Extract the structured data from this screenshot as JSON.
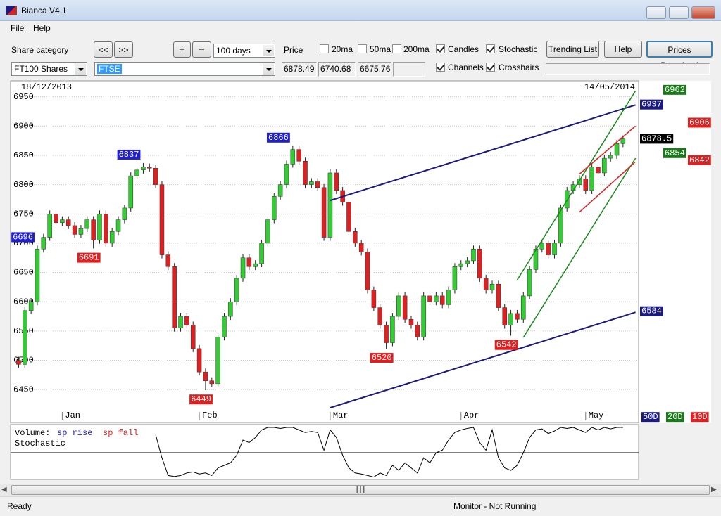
{
  "window": {
    "title": "Bianca V4.1"
  },
  "menu": [
    "File",
    "Help"
  ],
  "toolbar": {
    "share_category_label": "Share category",
    "nav_buttons": [
      "<<",
      ">>"
    ],
    "zoom_buttons": [
      "+",
      "−"
    ],
    "period": "100 days",
    "price_label": "Price",
    "options": [
      {
        "label": "20ma",
        "checked": false
      },
      {
        "label": "50ma",
        "checked": false
      },
      {
        "label": "200ma",
        "checked": false
      },
      {
        "label": "Candles",
        "checked": true
      },
      {
        "label": "Stochastic",
        "checked": true
      },
      {
        "label": "Channels",
        "checked": true
      },
      {
        "label": "Crosshairs",
        "checked": true
      }
    ],
    "buttons": [
      "Trending List",
      "Help",
      "Prices Download"
    ],
    "category": "FT100 Shares",
    "share": "FTSE",
    "prices": [
      6878.49,
      6740.68,
      6675.76
    ]
  },
  "chart_data": {
    "type": "candlestick",
    "start_date": "18/12/2013",
    "end_date": "14/05/2014",
    "rise_color": "#33cc33",
    "fall_color": "#e02020",
    "xlim": [
      -0.5,
      99.5
    ],
    "xticks": [
      {
        "value": 7,
        "label": "Jan"
      },
      {
        "value": 29,
        "label": "Feb"
      },
      {
        "value": 50,
        "label": "Mar"
      },
      {
        "value": 71,
        "label": "Apr"
      },
      {
        "value": 91,
        "label": "May"
      }
    ],
    "ylim": [
      6395,
      6976
    ],
    "yticks": [
      6450,
      6500,
      6550,
      6600,
      6650,
      6700,
      6750,
      6800,
      6850,
      6900,
      6950
    ],
    "grid": true,
    "open": [
      6500,
      6493,
      6585,
      6600,
      6690,
      6710,
      6750,
      6735,
      6740,
      6730,
      6715,
      6725,
      6740,
      6705,
      6750,
      6700,
      6720,
      6740,
      6760,
      6815,
      6825,
      6830,
      6828,
      6800,
      6680,
      6660,
      6555,
      6575,
      6560,
      6520,
      6480,
      6465,
      6460,
      6540,
      6575,
      6600,
      6640,
      6675,
      6660,
      6665,
      6700,
      6740,
      6780,
      6800,
      6835,
      6860,
      6840,
      6800,
      6805,
      6795,
      6710,
      6820,
      6790,
      6770,
      6720,
      6700,
      6685,
      6620,
      6590,
      6560,
      6530,
      6575,
      6610,
      6570,
      6560,
      6540,
      6610,
      6600,
      6610,
      6595,
      6620,
      6660,
      6665,
      6670,
      6690,
      6640,
      6620,
      6630,
      6590,
      6560,
      6580,
      6570,
      6610,
      6655,
      6690,
      6700,
      6680,
      6700,
      6760,
      6790,
      6800,
      6810,
      6790,
      6830,
      6820,
      6845,
      6850,
      6870
    ],
    "high": [
      6506,
      6591,
      6606,
      6696,
      6716,
      6756,
      6756,
      6746,
      6746,
      6736,
      6731,
      6746,
      6746,
      6756,
      6756,
      6726,
      6746,
      6766,
      6821,
      6831,
      6837,
      6836,
      6834,
      6806,
      6686,
      6666,
      6581,
      6581,
      6566,
      6526,
      6486,
      6471,
      6546,
      6581,
      6606,
      6646,
      6681,
      6681,
      6671,
      6706,
      6746,
      6786,
      6806,
      6841,
      6866,
      6866,
      6846,
      6811,
      6811,
      6801,
      6826,
      6826,
      6796,
      6776,
      6726,
      6706,
      6691,
      6626,
      6596,
      6566,
      6581,
      6616,
      6616,
      6576,
      6566,
      6616,
      6616,
      6616,
      6616,
      6626,
      6666,
      6671,
      6676,
      6696,
      6696,
      6646,
      6636,
      6636,
      6596,
      6586,
      6586,
      6616,
      6661,
      6696,
      6706,
      6706,
      6706,
      6766,
      6796,
      6806,
      6816,
      6816,
      6836,
      6836,
      6851,
      6856,
      6876,
      6884
    ],
    "low": [
      6487,
      6487,
      6579,
      6594,
      6684,
      6704,
      6729,
      6729,
      6724,
      6709,
      6709,
      6719,
      6691,
      6699,
      6694,
      6694,
      6714,
      6734,
      6754,
      6809,
      6819,
      6822,
      6794,
      6674,
      6654,
      6549,
      6549,
      6554,
      6514,
      6474,
      6449,
      6454,
      6454,
      6534,
      6569,
      6594,
      6634,
      6654,
      6654,
      6659,
      6694,
      6734,
      6774,
      6794,
      6829,
      6834,
      6794,
      6794,
      6789,
      6704,
      6704,
      6784,
      6764,
      6714,
      6694,
      6679,
      6614,
      6584,
      6554,
      6520,
      6524,
      6569,
      6564,
      6554,
      6534,
      6534,
      6594,
      6594,
      6589,
      6589,
      6614,
      6654,
      6659,
      6664,
      6634,
      6614,
      6614,
      6584,
      6554,
      6542,
      6564,
      6564,
      6604,
      6649,
      6684,
      6674,
      6674,
      6694,
      6754,
      6784,
      6794,
      6784,
      6784,
      6814,
      6814,
      6839,
      6844,
      6864
    ],
    "close": [
      6493,
      6585,
      6600,
      6690,
      6710,
      6750,
      6735,
      6740,
      6730,
      6715,
      6725,
      6740,
      6705,
      6750,
      6700,
      6720,
      6740,
      6760,
      6815,
      6825,
      6830,
      6828,
      6800,
      6680,
      6660,
      6555,
      6575,
      6560,
      6520,
      6480,
      6465,
      6460,
      6540,
      6575,
      6600,
      6640,
      6675,
      6660,
      6665,
      6700,
      6740,
      6780,
      6800,
      6835,
      6860,
      6840,
      6800,
      6805,
      6795,
      6710,
      6820,
      6790,
      6770,
      6720,
      6700,
      6685,
      6620,
      6590,
      6560,
      6530,
      6575,
      6610,
      6570,
      6560,
      6540,
      6610,
      6600,
      6610,
      6595,
      6620,
      6660,
      6665,
      6670,
      6690,
      6640,
      6620,
      6630,
      6590,
      6560,
      6580,
      6570,
      6610,
      6655,
      6690,
      6700,
      6680,
      6700,
      6760,
      6790,
      6800,
      6810,
      6790,
      6830,
      6820,
      6845,
      6850,
      6870,
      6878
    ],
    "trend_lines": [
      {
        "color": "#1a1a80",
        "points": [
          [
            50,
            6773
          ],
          [
            99,
            6936
          ]
        ]
      },
      {
        "color": "#1a1a80",
        "points": [
          [
            50,
            6419
          ],
          [
            99,
            6582
          ]
        ]
      },
      {
        "color": "#1a8a1a",
        "points": [
          [
            80,
            6637
          ],
          [
            99,
            6960
          ]
        ]
      },
      {
        "color": "#1a8a1a",
        "points": [
          [
            81,
            6539
          ],
          [
            99,
            6845
          ]
        ]
      },
      {
        "color": "#e02020",
        "points": [
          [
            90,
            6818
          ],
          [
            99,
            6900
          ]
        ]
      },
      {
        "color": "#e02020",
        "points": [
          [
            90,
            6753
          ],
          [
            99,
            6839
          ]
        ]
      }
    ],
    "peak_color": "#1f1fd0",
    "trough_color": "#e02020",
    "peaks": [
      6837,
      6866,
      6696
    ],
    "troughs": [
      6691,
      6449,
      6520,
      6542
    ],
    "side_labels": [
      {
        "value": 6962,
        "color": "#1a7a1a"
      },
      {
        "value": 6937,
        "color": "#1a1a80"
      },
      {
        "value": 6906,
        "color": "#e02020"
      },
      {
        "value": 6878.5,
        "color": "#000000"
      },
      {
        "value": 6854,
        "color": "#1a7a1a"
      },
      {
        "value": 6842,
        "color": "#e02020"
      },
      {
        "value": 6584,
        "color": "#1a1a80"
      }
    ],
    "ma_labels": [
      {
        "label": "50D",
        "color": "#1a1a80"
      },
      {
        "label": "20D",
        "color": "#1a7a1a"
      },
      {
        "label": "10D",
        "color": "#e02020"
      }
    ],
    "stochastic": {
      "volume_label": "Volume:",
      "legend": [
        {
          "label": "sp rise",
          "color": "#1f1fd0"
        },
        {
          "label": "sp fall",
          "color": "#e02020"
        }
      ],
      "label": "Stochastic",
      "ylim": [
        0,
        100
      ],
      "level": 50,
      "values": [
        null,
        null,
        null,
        null,
        null,
        null,
        null,
        null,
        null,
        null,
        null,
        null,
        null,
        null,
        null,
        null,
        null,
        null,
        null,
        null,
        null,
        null,
        85,
        40,
        5,
        3,
        5,
        10,
        12,
        8,
        10,
        5,
        20,
        25,
        30,
        45,
        75,
        70,
        80,
        95,
        100,
        100,
        98,
        100,
        100,
        95,
        90,
        92,
        90,
        55,
        95,
        80,
        45,
        20,
        10,
        8,
        5,
        2,
        10,
        5,
        25,
        15,
        30,
        20,
        10,
        40,
        30,
        50,
        55,
        75,
        90,
        95,
        98,
        100,
        70,
        55,
        95,
        40,
        20,
        15,
        25,
        50,
        80,
        95,
        97,
        88,
        93,
        100,
        98,
        100,
        95,
        90,
        100,
        95,
        100,
        97,
        100,
        100
      ]
    }
  },
  "status": {
    "left": "Ready",
    "right": "Monitor - Not Running"
  }
}
